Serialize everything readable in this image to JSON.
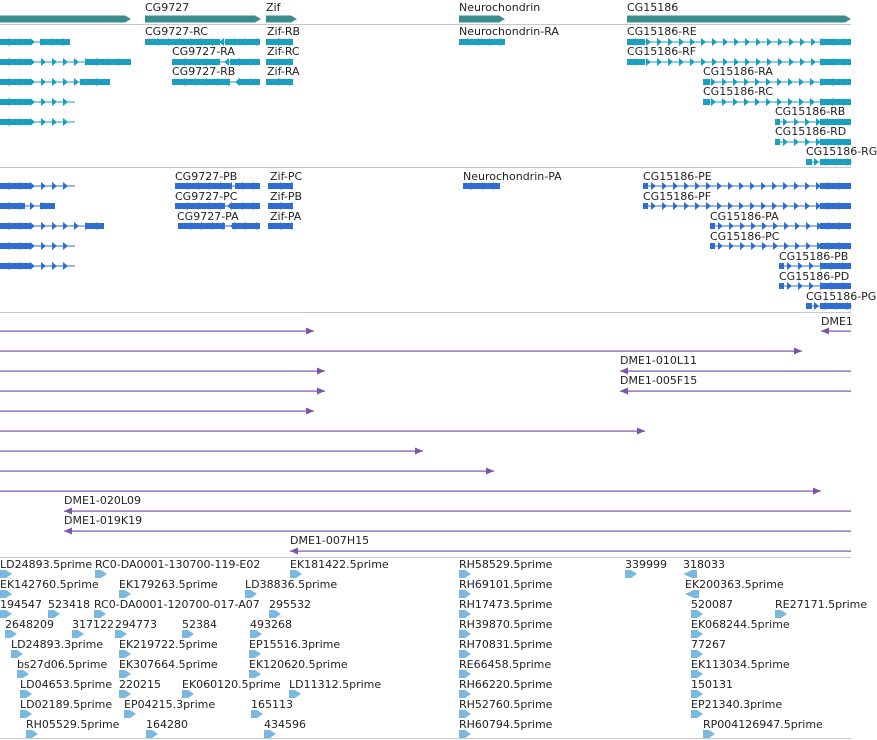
{
  "colors": {
    "gene": "#3a8c8c",
    "transcript_a": "#1a9fc0",
    "transcript_b": "#2f6ecf",
    "clone": "#7a55a8",
    "est": "#7ab8e0",
    "divider": "#c8c8c8",
    "label": "#222222"
  },
  "tracks": {
    "genes": {
      "items": [
        {
          "name": "CG9727"
        },
        {
          "name": "Zif"
        },
        {
          "name": "Neurochondrin"
        },
        {
          "name": "CG15186"
        }
      ]
    },
    "transcripts_a": {
      "items": [
        {
          "name": "CG9727-RC"
        },
        {
          "name": "CG9727-RA"
        },
        {
          "name": "CG9727-RB"
        },
        {
          "name": "Zif-RB"
        },
        {
          "name": "Zif-RC"
        },
        {
          "name": "Zif-RA"
        },
        {
          "name": "Neurochondrin-RA"
        },
        {
          "name": "CG15186-RE"
        },
        {
          "name": "CG15186-RF"
        },
        {
          "name": "CG15186-RA"
        },
        {
          "name": "CG15186-RC"
        },
        {
          "name": "CG15186-RB"
        },
        {
          "name": "CG15186-RD"
        },
        {
          "name": "CG15186-RG"
        }
      ]
    },
    "transcripts_b": {
      "items": [
        {
          "name": "CG9727-PB"
        },
        {
          "name": "CG9727-PC"
        },
        {
          "name": "CG9727-PA"
        },
        {
          "name": "Zif-PC"
        },
        {
          "name": "Zif-PB"
        },
        {
          "name": "Zif-PA"
        },
        {
          "name": "Neurochondrin-PA"
        },
        {
          "name": "CG15186-PE"
        },
        {
          "name": "CG15186-PF"
        },
        {
          "name": "CG15186-PA"
        },
        {
          "name": "CG15186-PC"
        },
        {
          "name": "CG15186-PB"
        },
        {
          "name": "CG15186-PD"
        },
        {
          "name": "CG15186-PG"
        }
      ]
    },
    "clones": {
      "items": [
        {
          "name": "DME1"
        },
        {
          "name": "DME1-010L11"
        },
        {
          "name": "DME1-005F15"
        },
        {
          "name": "DME1-020L09"
        },
        {
          "name": "DME1-019K19"
        },
        {
          "name": "DME1-007H15"
        }
      ]
    },
    "ests": {
      "items": [
        {
          "name": "LD24893.5prime"
        },
        {
          "name": "RC0-DA0001-130700-119-E02"
        },
        {
          "name": "EK181422.5prime"
        },
        {
          "name": "RH58529.5prime"
        },
        {
          "name": "339999"
        },
        {
          "name": "318033"
        },
        {
          "name": "EK142760.5prime"
        },
        {
          "name": "EK179263.5prime"
        },
        {
          "name": "LD38836.5prime"
        },
        {
          "name": "RH69101.5prime"
        },
        {
          "name": "EK200363.5prime"
        },
        {
          "name": "194547"
        },
        {
          "name": "523418"
        },
        {
          "name": "RC0-DA0001-120700-017-A07"
        },
        {
          "name": "295532"
        },
        {
          "name": "RH17473.5prime"
        },
        {
          "name": "520087"
        },
        {
          "name": "RE27171.5prime"
        },
        {
          "name": "2648209"
        },
        {
          "name": "317122"
        },
        {
          "name": "294773"
        },
        {
          "name": "52384"
        },
        {
          "name": "493268"
        },
        {
          "name": "RH39870.5prime"
        },
        {
          "name": "EK068244.5prime"
        },
        {
          "name": "LD24893.3prime"
        },
        {
          "name": "EK219722.5prime"
        },
        {
          "name": "EP15516.3prime"
        },
        {
          "name": "RH70831.5prime"
        },
        {
          "name": "77267"
        },
        {
          "name": "bs27d06.5prime"
        },
        {
          "name": "EK307664.5prime"
        },
        {
          "name": "EK120620.5prime"
        },
        {
          "name": "RE66458.5prime"
        },
        {
          "name": "EK113034.5prime"
        },
        {
          "name": "LD04653.5prime"
        },
        {
          "name": "220215"
        },
        {
          "name": "EK060120.5prime"
        },
        {
          "name": "LD11312.5prime"
        },
        {
          "name": "RH66220.5prime"
        },
        {
          "name": "150131"
        },
        {
          "name": "LD02189.5prime"
        },
        {
          "name": "EP04215.3prime"
        },
        {
          "name": "165113"
        },
        {
          "name": "RH52760.5prime"
        },
        {
          "name": "EP21340.3prime"
        },
        {
          "name": "RH05529.5prime"
        },
        {
          "name": "164280"
        },
        {
          "name": "434596"
        },
        {
          "name": "RH60794.5prime"
        },
        {
          "name": "RP004126947.5prime"
        }
      ]
    }
  }
}
